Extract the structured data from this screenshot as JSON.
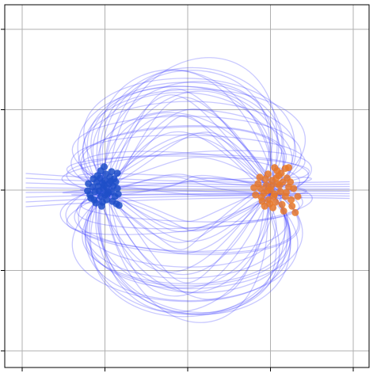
{
  "chart_data": {
    "type": "scatter",
    "title": "",
    "xlabel": "",
    "ylabel": "",
    "xlim": [
      -2.0,
      2.0
    ],
    "ylim": [
      -2.0,
      2.0
    ],
    "x_ticks": [
      -2,
      -1,
      0,
      1,
      2
    ],
    "y_ticks": [
      -2,
      -1,
      0,
      1,
      2
    ],
    "tick_labels_shown": false,
    "grid": true,
    "legend": "none",
    "colors": {
      "source_cluster": "#1f4fc8",
      "target_cluster": "#e6782a",
      "trajectories": "#3b3bff",
      "grid": "#b0b0b0",
      "axes": "#000000"
    },
    "series": [
      {
        "kind": "points",
        "color_key": "source_cluster",
        "points": [
          [
            -1.02,
            0.02
          ],
          [
            -0.97,
            -0.05
          ],
          [
            -1.08,
            0.05
          ],
          [
            -1.05,
            -0.08
          ],
          [
            -0.95,
            0.08
          ],
          [
            -1.12,
            -0.02
          ],
          [
            -1.0,
            0.12
          ],
          [
            -0.92,
            -0.02
          ],
          [
            -1.1,
            0.1
          ],
          [
            -0.98,
            -0.12
          ],
          [
            -1.15,
            0.04
          ],
          [
            -0.9,
            0.05
          ],
          [
            -1.06,
            0.15
          ],
          [
            -1.03,
            -0.15
          ],
          [
            -0.88,
            -0.08
          ],
          [
            -1.18,
            -0.06
          ],
          [
            -0.94,
            0.16
          ],
          [
            -1.13,
            -0.12
          ],
          [
            -0.99,
            0.2
          ],
          [
            -0.85,
            0.02
          ],
          [
            -1.2,
            0.08
          ],
          [
            -1.04,
            -0.2
          ],
          [
            -0.91,
            -0.14
          ],
          [
            -1.09,
            0.18
          ],
          [
            -0.96,
            -0.03
          ],
          [
            -1.01,
            0.06
          ],
          [
            -1.07,
            -0.01
          ],
          [
            -0.93,
            0.11
          ],
          [
            -1.14,
            0.14
          ],
          [
            -0.87,
            0.1
          ],
          [
            -1.17,
            -0.1
          ],
          [
            -1.0,
            -0.06
          ],
          [
            -0.84,
            -0.05
          ],
          [
            -0.89,
            0.14
          ],
          [
            -1.05,
            0.24
          ],
          [
            -1.21,
            -0.01
          ],
          [
            -0.98,
            0.03
          ],
          [
            -0.86,
            -0.17
          ],
          [
            -1.11,
            -0.16
          ],
          [
            -1.03,
            0.09
          ],
          [
            -0.85,
            0.21
          ],
          [
            -0.92,
            0.23
          ],
          [
            -1.01,
            0.29
          ],
          [
            -0.83,
            -0.19
          ]
        ]
      },
      {
        "kind": "points",
        "color_key": "target_cluster",
        "points": [
          [
            1.0,
            0.0
          ],
          [
            1.05,
            -0.05
          ],
          [
            0.95,
            0.06
          ],
          [
            1.08,
            0.08
          ],
          [
            0.92,
            -0.04
          ],
          [
            1.12,
            -0.02
          ],
          [
            1.02,
            0.12
          ],
          [
            0.98,
            -0.12
          ],
          [
            1.15,
            0.1
          ],
          [
            0.88,
            0.02
          ],
          [
            1.06,
            -0.15
          ],
          [
            0.94,
            0.14
          ],
          [
            1.18,
            -0.08
          ],
          [
            1.1,
            0.18
          ],
          [
            0.9,
            -0.14
          ],
          [
            1.22,
            0.04
          ],
          [
            0.85,
            0.08
          ],
          [
            1.03,
            -0.22
          ],
          [
            0.97,
            0.2
          ],
          [
            1.14,
            -0.18
          ],
          [
            1.25,
            -0.12
          ],
          [
            1.2,
            0.15
          ],
          [
            0.82,
            -0.06
          ],
          [
            1.08,
            0.24
          ],
          [
            0.93,
            -0.2
          ],
          [
            1.28,
            0.02
          ],
          [
            0.87,
            0.16
          ],
          [
            1.16,
            -0.26
          ],
          [
            1.01,
            0.05
          ],
          [
            1.04,
            -0.08
          ],
          [
            0.96,
            -0.01
          ],
          [
            1.11,
            0.06
          ],
          [
            1.19,
            -0.03
          ],
          [
            0.89,
            -0.09
          ],
          [
            1.07,
            0.15
          ],
          [
            1.24,
            0.1
          ],
          [
            0.99,
            -0.17
          ],
          [
            1.13,
            0.21
          ],
          [
            1.26,
            -0.2
          ],
          [
            0.8,
            0.03
          ],
          [
            1.3,
            -0.28
          ],
          [
            1.22,
            0.28
          ],
          [
            1.18,
            0.27
          ],
          [
            1.05,
            0.28
          ],
          [
            1.33,
            -0.08
          ]
        ]
      },
      {
        "kind": "trajectories",
        "color_key": "trajectories",
        "from": [
          -1.0,
          0.0
        ],
        "to": [
          1.0,
          0.0
        ],
        "count": 80,
        "note_shape": "curved paths connecting the two clusters, filling a roughly circular region of radius about 2"
      }
    ]
  }
}
